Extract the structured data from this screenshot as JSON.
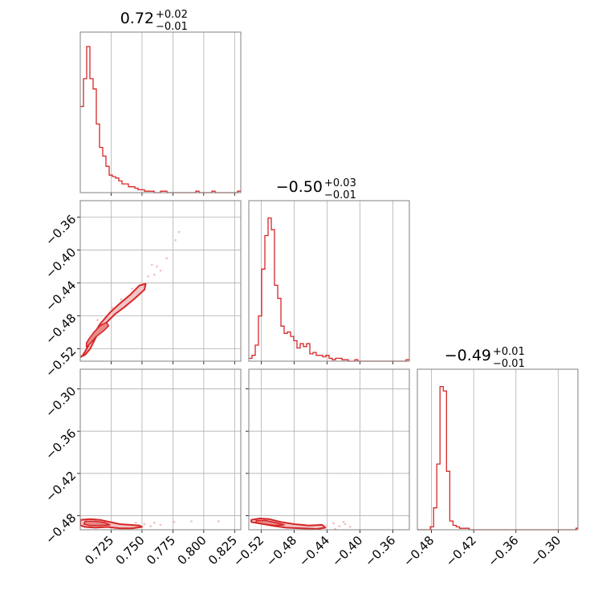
{
  "colors": {
    "accent": "#d62728",
    "grid": "#b0b0b0",
    "frame": "#808080",
    "fill_light": "#f2c4c4"
  },
  "chart_data": {
    "type": "corner",
    "grid": true,
    "parameters": [
      {
        "range": [
          0.7,
          0.83
        ],
        "ticks": [
          "0.725",
          "0.750",
          "0.775",
          "0.800",
          "0.825"
        ],
        "tick_values": [
          0.725,
          0.75,
          0.775,
          0.8,
          0.825
        ],
        "title": {
          "median": "0.72",
          "plus": "+0.02",
          "minus": "−0.01"
        }
      },
      {
        "range": [
          -0.535,
          -0.34
        ],
        "ticks": [
          "−0.52",
          "−0.48",
          "−0.44",
          "−0.40",
          "−0.36"
        ],
        "tick_values": [
          -0.52,
          -0.48,
          -0.44,
          -0.4,
          -0.36
        ],
        "title": {
          "median": "−0.50",
          "plus": "+0.03",
          "minus": "−0.01"
        }
      },
      {
        "range": [
          -0.5,
          -0.272
        ],
        "ticks": [
          "−0.48",
          "−0.42",
          "−0.36",
          "−0.30"
        ],
        "tick_values": [
          -0.48,
          -0.42,
          -0.36,
          -0.3
        ],
        "title": {
          "median": "−0.49",
          "plus": "+0.01",
          "minus": "−0.01"
        }
      }
    ],
    "histograms": [
      {
        "param": 0,
        "bin_width": 0.0026,
        "counts": [
          0.59,
          0.78,
          1.0,
          0.78,
          0.71,
          0.47,
          0.31,
          0.25,
          0.18,
          0.12,
          0.11,
          0.1,
          0.08,
          0.06,
          0.06,
          0.04,
          0.04,
          0.03,
          0.02,
          0.02,
          0.01,
          0.01,
          0.01,
          0,
          0,
          0.01,
          0.01,
          0,
          0,
          0,
          0,
          0,
          0,
          0,
          0,
          0,
          0.01,
          0,
          0,
          0,
          0,
          0.01,
          0,
          0,
          0,
          0,
          0,
          0,
          0,
          0.01
        ]
      },
      {
        "param": 1,
        "bin_width": 0.0039,
        "counts": [
          0.02,
          0.04,
          0.11,
          0.31,
          0.63,
          0.86,
          0.98,
          0.9,
          0.52,
          0.43,
          0.24,
          0.19,
          0.2,
          0.17,
          0.14,
          0.09,
          0.12,
          0.1,
          0.12,
          0.05,
          0.06,
          0.04,
          0.04,
          0.03,
          0.04,
          0.02,
          0.01,
          0.02,
          0.02,
          0.01,
          0.01,
          0,
          0,
          0.01,
          0,
          0,
          0,
          0,
          0,
          0,
          0,
          0,
          0,
          0,
          0,
          0,
          0,
          0,
          0,
          0.01
        ]
      },
      {
        "param": 2,
        "bin_width": 0.0046,
        "counts": [
          0,
          0,
          0,
          0,
          0.02,
          0.15,
          0.45,
          0.98,
          0.95,
          0.4,
          0.06,
          0.03,
          0.02,
          0.01,
          0.01,
          0.01,
          0,
          0,
          0,
          0,
          0,
          0,
          0,
          0,
          0,
          0,
          0,
          0,
          0,
          0,
          0,
          0,
          0,
          0,
          0,
          0,
          0,
          0,
          0,
          0,
          0,
          0,
          0,
          0,
          0,
          0,
          0,
          0,
          0,
          0.01
        ]
      }
    ],
    "scatter_panels": [
      {
        "x_param": 0,
        "y_param": 1,
        "core": [
          [
            0.7,
            -0.53
          ],
          [
            0.704,
            -0.527
          ],
          [
            0.708,
            -0.52
          ],
          [
            0.712,
            -0.508
          ],
          [
            0.716,
            -0.496
          ],
          [
            0.722,
            -0.487
          ],
          [
            0.728,
            -0.478
          ],
          [
            0.736,
            -0.469
          ],
          [
            0.744,
            -0.459
          ],
          [
            0.752,
            -0.448
          ],
          [
            0.753,
            -0.441
          ],
          [
            0.748,
            -0.443
          ],
          [
            0.74,
            -0.455
          ],
          [
            0.732,
            -0.465
          ],
          [
            0.724,
            -0.476
          ],
          [
            0.716,
            -0.49
          ],
          [
            0.71,
            -0.505
          ],
          [
            0.706,
            -0.518
          ],
          [
            0.702,
            -0.528
          ]
        ],
        "inner": [
          [
            0.705,
            -0.518
          ],
          [
            0.709,
            -0.512
          ],
          [
            0.713,
            -0.505
          ],
          [
            0.719,
            -0.498
          ],
          [
            0.723,
            -0.492
          ],
          [
            0.721,
            -0.488
          ],
          [
            0.716,
            -0.492
          ],
          [
            0.711,
            -0.5
          ],
          [
            0.707,
            -0.508
          ],
          [
            0.705,
            -0.513
          ]
        ],
        "points": [
          [
            0.755,
            -0.432
          ],
          [
            0.745,
            -0.452
          ],
          [
            0.738,
            -0.458
          ],
          [
            0.76,
            -0.43
          ],
          [
            0.733,
            -0.46
          ],
          [
            0.765,
            -0.425
          ],
          [
            0.77,
            -0.41
          ],
          [
            0.777,
            -0.388
          ],
          [
            0.78,
            -0.378
          ],
          [
            0.742,
            -0.447
          ],
          [
            0.726,
            -0.47
          ],
          [
            0.762,
            -0.42
          ],
          [
            0.75,
            -0.44
          ],
          [
            0.714,
            -0.485
          ],
          [
            0.758,
            -0.418
          ]
        ]
      },
      {
        "x_param": 0,
        "y_param": 2,
        "core": [
          [
            0.7,
            -0.486
          ],
          [
            0.708,
            -0.485
          ],
          [
            0.716,
            -0.486
          ],
          [
            0.724,
            -0.489
          ],
          [
            0.732,
            -0.492
          ],
          [
            0.74,
            -0.493
          ],
          [
            0.748,
            -0.494
          ],
          [
            0.75,
            -0.496
          ],
          [
            0.742,
            -0.498
          ],
          [
            0.732,
            -0.498
          ],
          [
            0.722,
            -0.496
          ],
          [
            0.712,
            -0.497
          ],
          [
            0.704,
            -0.496
          ],
          [
            0.7,
            -0.494
          ]
        ],
        "inner": [
          [
            0.704,
            -0.488
          ],
          [
            0.712,
            -0.488
          ],
          [
            0.72,
            -0.49
          ],
          [
            0.724,
            -0.493
          ],
          [
            0.716,
            -0.494
          ],
          [
            0.708,
            -0.494
          ],
          [
            0.703,
            -0.492
          ]
        ],
        "points": [
          [
            0.752,
            -0.492
          ],
          [
            0.76,
            -0.49
          ],
          [
            0.765,
            -0.493
          ],
          [
            0.776,
            -0.489
          ],
          [
            0.79,
            -0.488
          ],
          [
            0.812,
            -0.488
          ],
          [
            0.745,
            -0.49
          ],
          [
            0.738,
            -0.495
          ],
          [
            0.728,
            -0.5
          ],
          [
            0.757,
            -0.495
          ]
        ]
      },
      {
        "x_param": 1,
        "y_param": 2,
        "core": [
          [
            -0.532,
            -0.486
          ],
          [
            -0.522,
            -0.484
          ],
          [
            -0.51,
            -0.485
          ],
          [
            -0.496,
            -0.489
          ],
          [
            -0.48,
            -0.492
          ],
          [
            -0.462,
            -0.494
          ],
          [
            -0.446,
            -0.493
          ],
          [
            -0.442,
            -0.497
          ],
          [
            -0.452,
            -0.499
          ],
          [
            -0.47,
            -0.498
          ],
          [
            -0.49,
            -0.497
          ],
          [
            -0.508,
            -0.494
          ],
          [
            -0.522,
            -0.491
          ],
          [
            -0.532,
            -0.489
          ]
        ],
        "inner": [
          [
            -0.526,
            -0.487
          ],
          [
            -0.514,
            -0.487
          ],
          [
            -0.502,
            -0.49
          ],
          [
            -0.492,
            -0.493
          ],
          [
            -0.504,
            -0.494
          ],
          [
            -0.516,
            -0.492
          ],
          [
            -0.526,
            -0.49
          ]
        ],
        "points": [
          [
            -0.44,
            -0.494
          ],
          [
            -0.432,
            -0.491
          ],
          [
            -0.425,
            -0.495
          ],
          [
            -0.418,
            -0.492
          ],
          [
            -0.43,
            -0.499
          ],
          [
            -0.412,
            -0.496
          ],
          [
            -0.436,
            -0.502
          ],
          [
            -0.455,
            -0.501
          ],
          [
            -0.448,
            -0.5
          ],
          [
            -0.42,
            -0.489
          ]
        ]
      }
    ]
  }
}
